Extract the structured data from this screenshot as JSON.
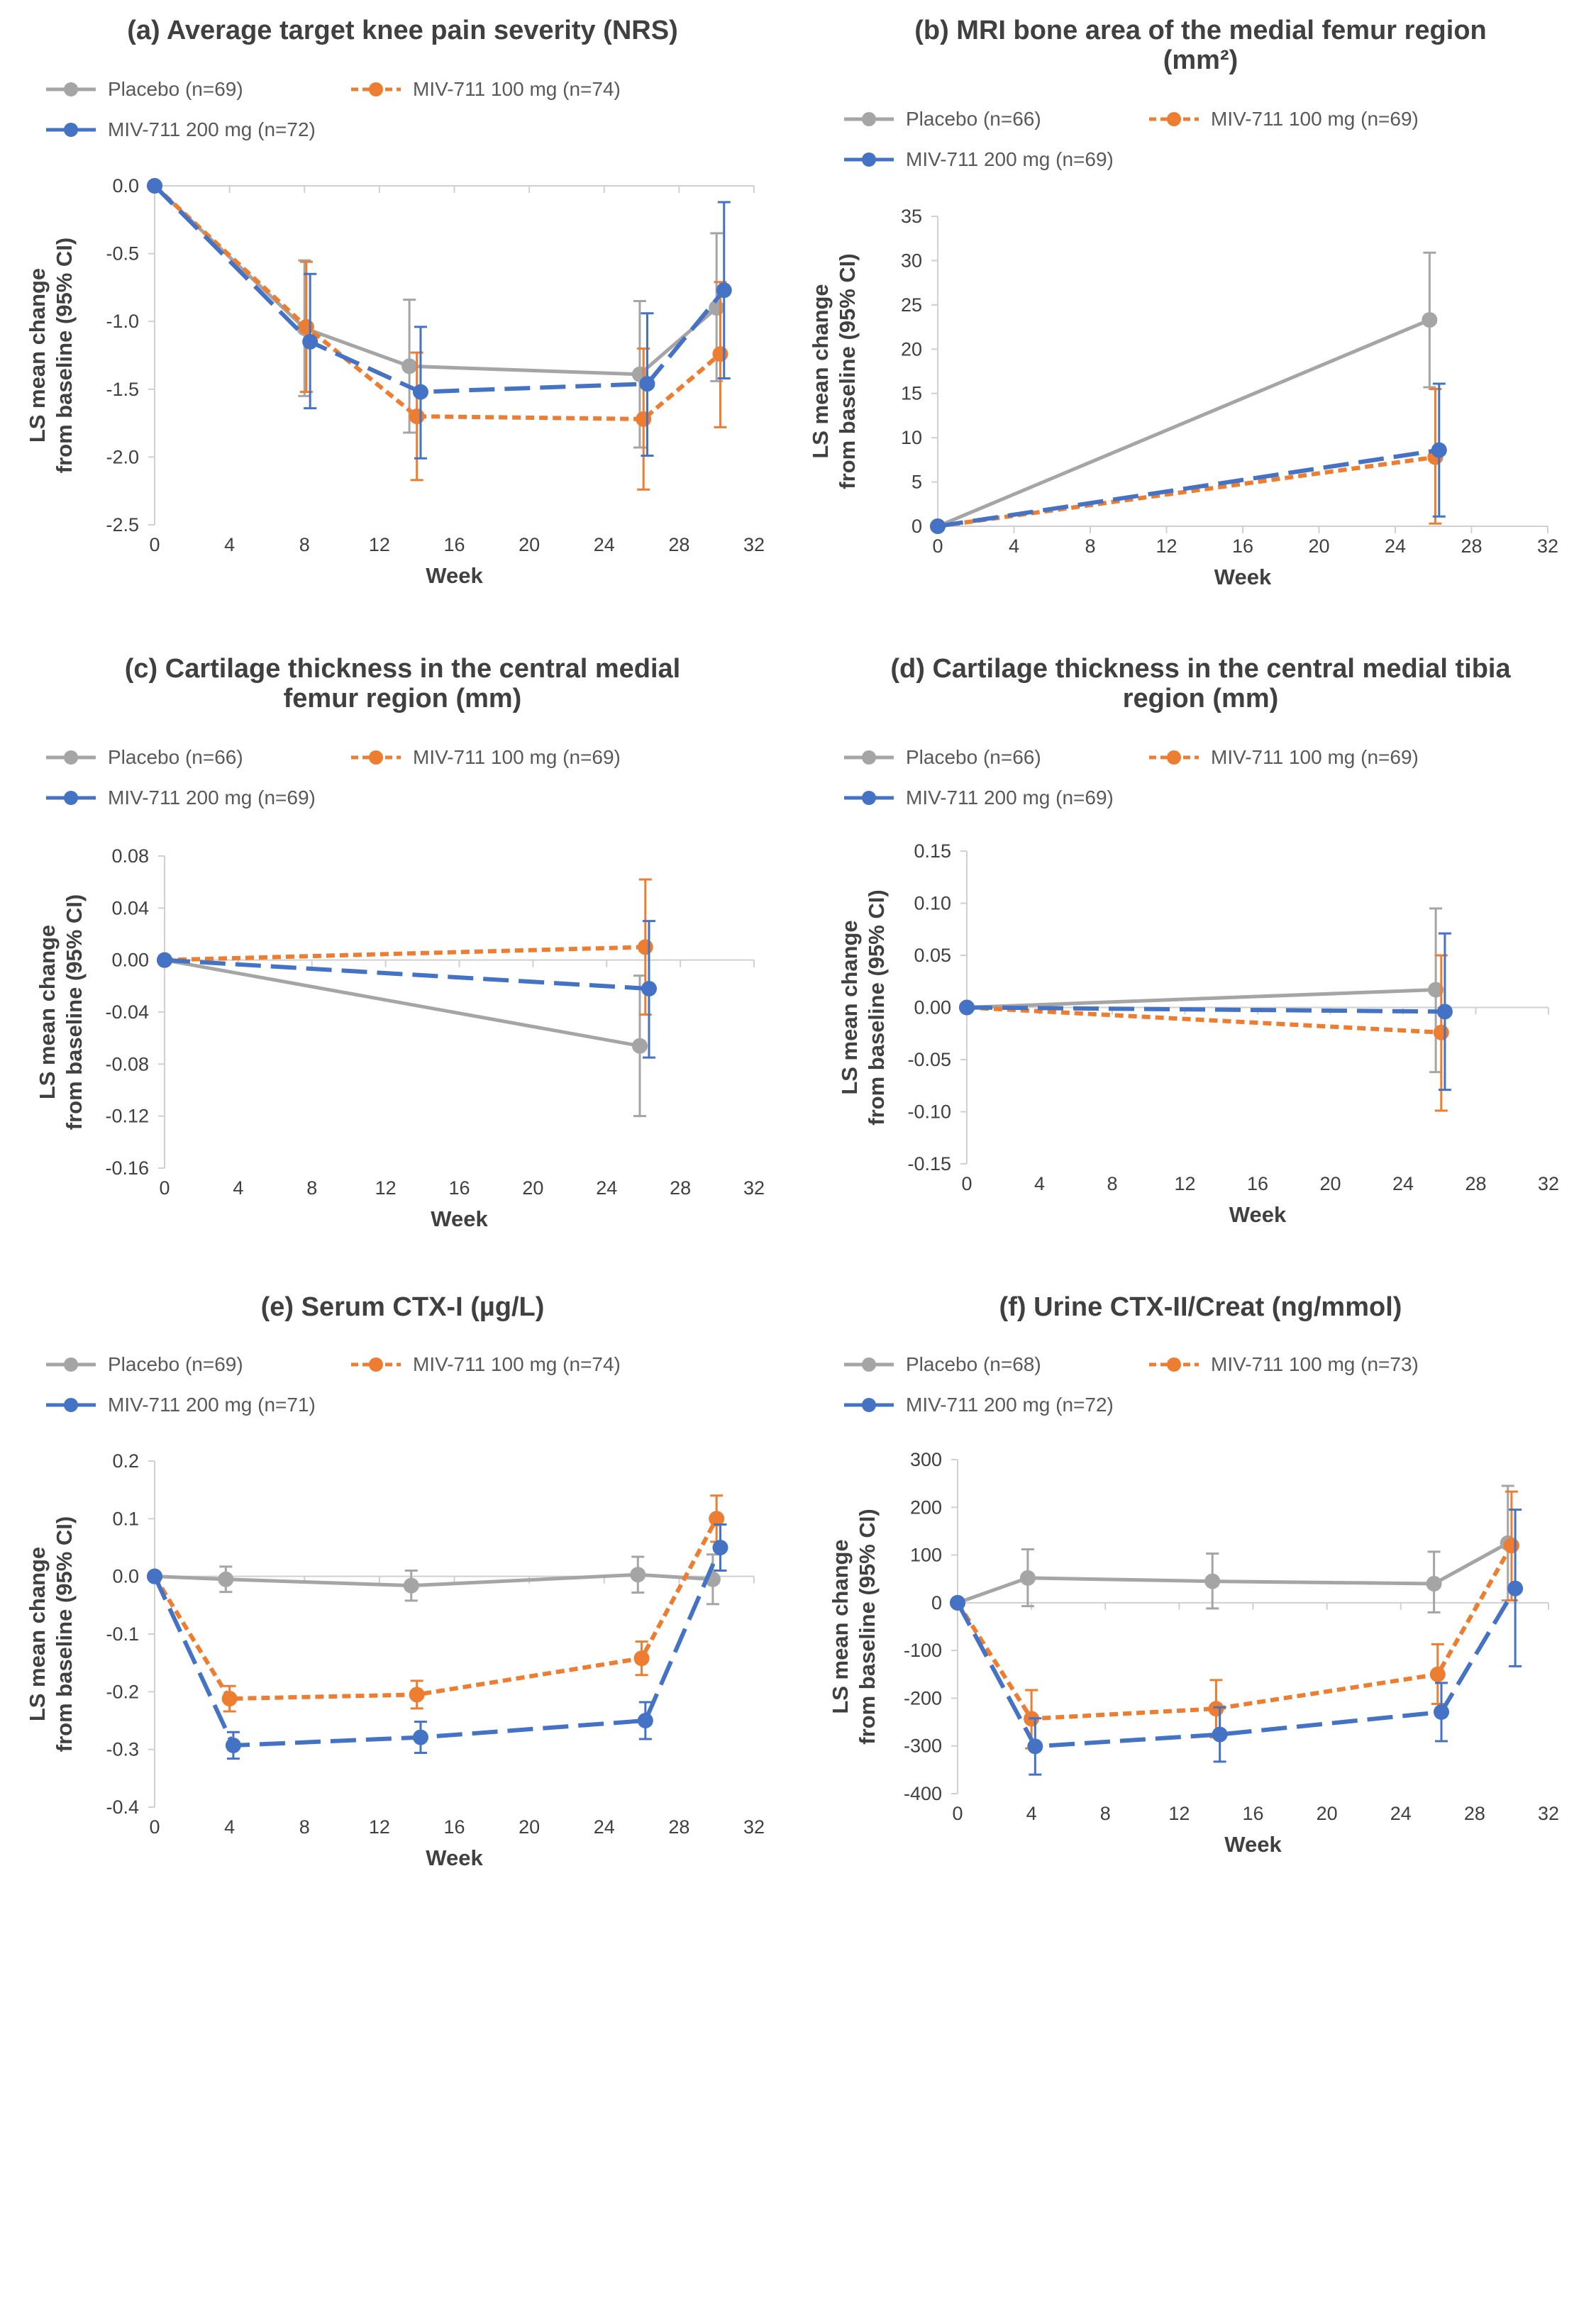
{
  "colors": {
    "placebo": "#A5A5A5",
    "mid": "#ED7D31",
    "high": "#4472C4"
  },
  "chart_data": [
    {
      "type": "line",
      "title": "(a) Average target knee pain severity (NRS)",
      "xlabel": "Week",
      "ylabel": [
        "LS mean change",
        "from baseline (95% CI)"
      ],
      "xlim": [
        0,
        32
      ],
      "xticks": [
        "0",
        "4",
        "8",
        "12",
        "16",
        "20",
        "24",
        "28",
        "32"
      ],
      "ylim": [
        -2.5,
        0
      ],
      "yticks": [
        "0.0",
        "-0.5",
        "-1.0",
        "-1.5",
        "-2.0",
        "-2.5"
      ],
      "legend": [
        [
          "Placebo (n=69)",
          "MIV-711 100 mg (n=74)"
        ],
        [
          "MIV-711 200 mg (n=72)"
        ]
      ],
      "series": [
        {
          "name": "Placebo (n=69)",
          "x": [
            0,
            8,
            13.6,
            25.9,
            30
          ],
          "y": [
            0,
            -1.05,
            -1.33,
            -1.39,
            -0.9
          ],
          "ci_low": [
            0,
            -1.55,
            -1.82,
            -1.93,
            -1.44
          ],
          "ci_high": [
            0,
            -0.55,
            -0.84,
            -0.85,
            -0.35
          ]
        },
        {
          "name": "MIV-711 100 mg (n=74)",
          "x": [
            0,
            8.1,
            14,
            26.1,
            30.2
          ],
          "y": [
            0,
            -1.04,
            -1.7,
            -1.72,
            -1.24
          ],
          "ci_low": [
            0,
            -1.52,
            -2.17,
            -2.24,
            -1.78
          ],
          "ci_high": [
            0,
            -0.56,
            -1.23,
            -1.2,
            -0.71
          ]
        },
        {
          "name": "MIV-711 200 mg (n=72)",
          "x": [
            0,
            8.3,
            14.2,
            26.3,
            30.4
          ],
          "y": [
            0,
            -1.15,
            -1.52,
            -1.46,
            -0.77
          ],
          "ci_low": [
            0,
            -1.64,
            -2.01,
            -1.99,
            -1.42
          ],
          "ci_high": [
            0,
            -0.65,
            -1.04,
            -0.94,
            -0.12
          ]
        }
      ]
    },
    {
      "type": "line",
      "title": [
        "(b) MRI bone area of the medial femur region",
        "(mm²)"
      ],
      "xlabel": "Week",
      "ylabel": [
        "LS mean change",
        "from baseline (95% CI)"
      ],
      "xlim": [
        0,
        32
      ],
      "xticks": [
        "0",
        "4",
        "8",
        "12",
        "16",
        "20",
        "24",
        "28",
        "32"
      ],
      "ylim": [
        0,
        35
      ],
      "yticks": [
        "35",
        "30",
        "25",
        "20",
        "15",
        "10",
        "5",
        "0"
      ],
      "legend": [
        [
          "Placebo (n=66)",
          "MIV-711 100 mg (n=69)"
        ],
        [
          "MIV-711 200 mg (n=69)"
        ]
      ],
      "series": [
        {
          "name": "Placebo (n=66)",
          "x": [
            0,
            25.8
          ],
          "y": [
            0,
            23.3
          ],
          "ci_low": [
            0,
            15.7
          ],
          "ci_high": [
            0,
            30.9
          ]
        },
        {
          "name": "MIV-711 100 mg (n=69)",
          "x": [
            0,
            26.1
          ],
          "y": [
            0,
            7.8
          ],
          "ci_low": [
            0,
            0.3
          ],
          "ci_high": [
            0,
            15.5
          ]
        },
        {
          "name": "MIV-711 200 mg (n=69)",
          "x": [
            0,
            26.3
          ],
          "y": [
            0,
            8.6
          ],
          "ci_low": [
            0,
            1.1
          ],
          "ci_high": [
            0,
            16.1
          ]
        }
      ]
    },
    {
      "type": "line",
      "title": [
        "(c) Cartilage thickness in the central medial",
        "femur region (mm)"
      ],
      "xlabel": "Week",
      "ylabel": [
        "LS mean change",
        "from baseline (95% CI)"
      ],
      "xlim": [
        0,
        32
      ],
      "xticks": [
        "0",
        "4",
        "8",
        "12",
        "16",
        "20",
        "24",
        "28",
        "32"
      ],
      "ylim": [
        -0.16,
        0.08
      ],
      "yticks": [
        "0.08",
        "0.04",
        "0.00",
        "-0.04",
        "-0.08",
        "-0.12",
        "-0.16"
      ],
      "legend": [
        [
          "Placebo (n=66)",
          "MIV-711 100 mg (n=69)"
        ],
        [
          "MIV-711 200 mg (n=69)"
        ]
      ],
      "series": [
        {
          "name": "Placebo (n=66)",
          "x": [
            0,
            25.8
          ],
          "y": [
            0,
            -0.066
          ],
          "ci_low": [
            0,
            -0.12
          ],
          "ci_high": [
            0,
            -0.012
          ]
        },
        {
          "name": "MIV-711 100 mg (n=69)",
          "x": [
            0,
            26.1
          ],
          "y": [
            0,
            0.01
          ],
          "ci_low": [
            0,
            -0.042
          ],
          "ci_high": [
            0,
            0.062
          ]
        },
        {
          "name": "MIV-711 200 mg (n=69)",
          "x": [
            0,
            26.3
          ],
          "y": [
            0,
            -0.022
          ],
          "ci_low": [
            0,
            -0.075
          ],
          "ci_high": [
            0,
            0.03
          ]
        }
      ]
    },
    {
      "type": "line",
      "title": [
        "(d) Cartilage thickness in the central medial tibia",
        "region (mm)"
      ],
      "xlabel": "Week",
      "ylabel": [
        "LS mean change",
        "from baseline (95% CI)"
      ],
      "xlim": [
        0,
        32
      ],
      "xticks": [
        "0",
        "4",
        "8",
        "12",
        "16",
        "20",
        "24",
        "28",
        "32"
      ],
      "ylim": [
        -0.15,
        0.15
      ],
      "yticks": [
        "0.15",
        "0.10",
        "0.05",
        "0.00",
        "-0.05",
        "-0.10",
        "-0.15"
      ],
      "legend": [
        [
          "Placebo (n=66)",
          "MIV-711 100 mg (n=69)"
        ],
        [
          "MIV-711 200 mg (n=69)"
        ]
      ],
      "series": [
        {
          "name": "Placebo (n=66)",
          "x": [
            0,
            25.8
          ],
          "y": [
            0,
            0.017
          ],
          "ci_low": [
            0,
            -0.062
          ],
          "ci_high": [
            0,
            0.095
          ]
        },
        {
          "name": "MIV-711 100 mg (n=69)",
          "x": [
            0,
            26.1
          ],
          "y": [
            0,
            -0.024
          ],
          "ci_low": [
            0,
            -0.099
          ],
          "ci_high": [
            0,
            0.05
          ]
        },
        {
          "name": "MIV-711 200 mg (n=69)",
          "x": [
            0,
            26.3
          ],
          "y": [
            0,
            -0.004
          ],
          "ci_low": [
            0,
            -0.079
          ],
          "ci_high": [
            0,
            0.071
          ]
        }
      ]
    },
    {
      "type": "line",
      "title": "(e) Serum CTX-I (µg/L)",
      "xlabel": "Week",
      "ylabel": [
        "LS mean change",
        "from baseline (95% CI)"
      ],
      "xlim": [
        0,
        32
      ],
      "xticks": [
        "0",
        "4",
        "8",
        "12",
        "16",
        "20",
        "24",
        "28",
        "32"
      ],
      "ylim": [
        -0.4,
        0.2
      ],
      "yticks": [
        "0.2",
        "0.1",
        "0.0",
        "-0.1",
        "-0.2",
        "-0.3",
        "-0.4"
      ],
      "legend": [
        [
          "Placebo (n=69)",
          "MIV-711 100 mg (n=74)"
        ],
        [
          "MIV-711 200 mg (n=71)"
        ]
      ],
      "series": [
        {
          "name": "Placebo (n=69)",
          "x": [
            0,
            3.8,
            13.7,
            25.8,
            29.8
          ],
          "y": [
            0,
            -0.005,
            -0.016,
            0.003,
            -0.005
          ],
          "ci_low": [
            0,
            -0.027,
            -0.042,
            -0.028,
            -0.048
          ],
          "ci_high": [
            0,
            0.017,
            0.01,
            0.034,
            0.038
          ]
        },
        {
          "name": "MIV-711 100 mg (n=74)",
          "x": [
            0,
            4,
            14,
            26,
            30
          ],
          "y": [
            0,
            -0.212,
            -0.205,
            -0.142,
            0.1
          ],
          "ci_low": [
            0,
            -0.234,
            -0.229,
            -0.171,
            0.06
          ],
          "ci_high": [
            0,
            -0.19,
            -0.181,
            -0.113,
            0.14
          ]
        },
        {
          "name": "MIV-711 200 mg (n=71)",
          "x": [
            0,
            4.2,
            14.2,
            26.2,
            30.2
          ],
          "y": [
            0,
            -0.293,
            -0.279,
            -0.25,
            0.05
          ],
          "ci_low": [
            0,
            -0.316,
            -0.306,
            -0.282,
            0.01
          ],
          "ci_high": [
            0,
            -0.27,
            -0.252,
            -0.218,
            0.09
          ]
        }
      ]
    },
    {
      "type": "line",
      "title": "(f) Urine CTX-II/Creat (ng/mmol)",
      "xlabel": "Week",
      "ylabel": [
        "LS mean change",
        "from baseline (95% CI)"
      ],
      "xlim": [
        0,
        32
      ],
      "xticks": [
        "0",
        "4",
        "8",
        "12",
        "16",
        "20",
        "24",
        "28",
        "32"
      ],
      "ylim": [
        -400,
        300
      ],
      "yticks": [
        "300",
        "200",
        "100",
        "0",
        "-100",
        "-200",
        "-300",
        "-400"
      ],
      "legend": [
        [
          "Placebo (n=68)",
          "MIV-711 100 mg (n=73)"
        ],
        [
          "MIV-711 200 mg (n=72)"
        ]
      ],
      "series": [
        {
          "name": "Placebo (n=68)",
          "x": [
            0,
            3.8,
            13.8,
            25.8,
            29.8
          ],
          "y": [
            0,
            52,
            45,
            40,
            125
          ],
          "ci_low": [
            0,
            -7,
            -12,
            -20,
            5
          ],
          "ci_high": [
            0,
            112,
            103,
            107,
            245
          ]
        },
        {
          "name": "MIV-711 100 mg (n=73)",
          "x": [
            0,
            4,
            14,
            26,
            30
          ],
          "y": [
            0,
            -243,
            -222,
            -150,
            120
          ],
          "ci_low": [
            0,
            -305,
            -282,
            -212,
            5
          ],
          "ci_high": [
            0,
            -183,
            -162,
            -87,
            233
          ]
        },
        {
          "name": "MIV-711 200 mg (n=72)",
          "x": [
            0,
            4.2,
            14.2,
            26.2,
            30.2
          ],
          "y": [
            0,
            -301,
            -276,
            -229,
            30
          ],
          "ci_low": [
            0,
            -360,
            -333,
            -290,
            -133
          ],
          "ci_high": [
            0,
            -242,
            -219,
            -168,
            195
          ]
        }
      ]
    }
  ]
}
